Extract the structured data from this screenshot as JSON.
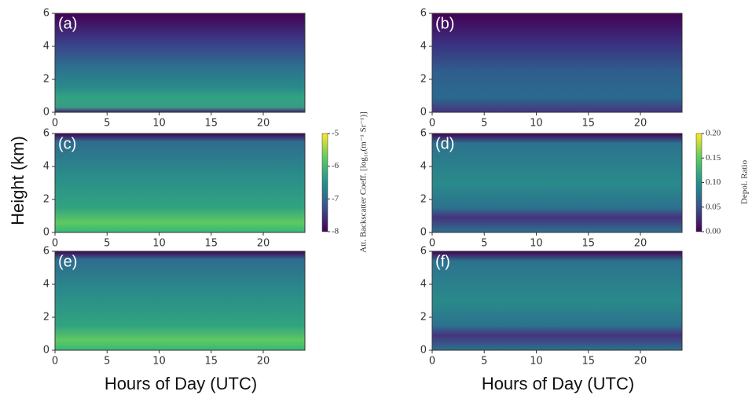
{
  "chart_data": [
    {
      "type": "heatmap",
      "label": "(a)",
      "xlim": [
        0,
        24
      ],
      "ylim": [
        0,
        6
      ],
      "xticks": [
        0,
        5,
        10,
        15,
        20
      ],
      "yticks": [
        0,
        2,
        4,
        6
      ]
    },
    {
      "type": "heatmap",
      "label": "(b)",
      "xlim": [
        0,
        24
      ],
      "ylim": [
        0,
        6
      ],
      "xticks": [
        0,
        5,
        10,
        15,
        20
      ],
      "yticks": [
        0,
        2,
        4,
        6
      ]
    },
    {
      "type": "heatmap",
      "label": "(c)",
      "xlim": [
        0,
        24
      ],
      "ylim": [
        0,
        6
      ],
      "xticks": [
        0,
        5,
        10,
        15,
        20
      ],
      "yticks": [
        0,
        2,
        4,
        6
      ]
    },
    {
      "type": "heatmap",
      "label": "(d)",
      "xlim": [
        0,
        24
      ],
      "ylim": [
        0,
        6
      ],
      "xticks": [
        0,
        5,
        10,
        15,
        20
      ],
      "yticks": [
        0,
        2,
        4,
        6
      ]
    },
    {
      "type": "heatmap",
      "label": "(e)",
      "xlim": [
        0,
        24
      ],
      "ylim": [
        0,
        6
      ],
      "xticks": [
        0,
        5,
        10,
        15,
        20
      ],
      "yticks": [
        0,
        2,
        4,
        6
      ]
    },
    {
      "type": "heatmap",
      "label": "(f)",
      "xlim": [
        0,
        24
      ],
      "ylim": [
        0,
        6
      ],
      "xticks": [
        0,
        5,
        10,
        15,
        20
      ],
      "yticks": [
        0,
        2,
        4,
        6
      ]
    }
  ],
  "y_label": "Height (km)",
  "x_labels": [
    "Hours of Day (UTC)",
    "Hours of Day (UTC)"
  ],
  "colorbars": [
    {
      "label": "Att. Backscatter Coeff. [log₁₀(m⁻¹ Sr⁻¹)]",
      "lim": [
        -8,
        -5
      ],
      "ticks": [
        -5,
        -6,
        -7,
        -8
      ]
    },
    {
      "label": "Depol. Ratio",
      "lim": [
        0,
        0.2
      ],
      "ticks": [
        {
          "value": 0.2,
          "label": "0.20"
        },
        {
          "value": 0.15,
          "label": "0.15"
        },
        {
          "value": 0.1,
          "label": "0.10"
        },
        {
          "value": 0.05,
          "label": "0.05"
        },
        {
          "value": 0,
          "label": "0.00"
        }
      ]
    }
  ]
}
